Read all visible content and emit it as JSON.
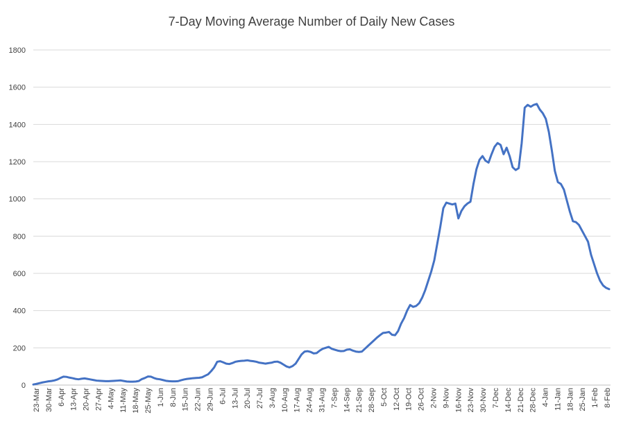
{
  "chart_data": {
    "type": "line",
    "title": "7-Day Moving Average Number of Daily New Cases",
    "xlabel": "",
    "ylabel": "",
    "ylim": [
      0,
      1800
    ],
    "yticks": [
      0,
      200,
      400,
      600,
      800,
      1000,
      1200,
      1400,
      1600,
      1800
    ],
    "grid": true,
    "legend": "none",
    "line_color": "#4472C4",
    "x_tick_labels": [
      "23-Mar",
      "30-Mar",
      "6-Apr",
      "13-Apr",
      "20-Apr",
      "27-Apr",
      "4-May",
      "11-May",
      "18-May",
      "25-May",
      "1-Jun",
      "8-Jun",
      "15-Jun",
      "22-Jun",
      "29-Jun",
      "6-Jul",
      "13-Jul",
      "20-Jul",
      "27-Jul",
      "3-Aug",
      "10-Aug",
      "17-Aug",
      "24-Aug",
      "31-Aug",
      "7-Sep",
      "14-Sep",
      "21-Sep",
      "28-Sep",
      "5-Oct",
      "12-Oct",
      "19-Oct",
      "26-Oct",
      "2-Nov",
      "9-Nov",
      "16-Nov",
      "23-Nov",
      "30-Nov",
      "7-Dec",
      "14-Dec",
      "21-Dec",
      "28-Dec",
      "4-Jan",
      "11-Jan",
      "18-Jan",
      "25-Jan",
      "1-Feb",
      "8-Feb"
    ],
    "series": [
      {
        "values": [
          3,
          6,
          10,
          14,
          17,
          20,
          22,
          25,
          30,
          38,
          45,
          44,
          40,
          37,
          33,
          31,
          34,
          36,
          33,
          30,
          27,
          24,
          23,
          22,
          21,
          21,
          22,
          23,
          24,
          25,
          22,
          19,
          18,
          18,
          19,
          22,
          32,
          38,
          46,
          45,
          38,
          33,
          31,
          27,
          23,
          21,
          20,
          20,
          21,
          26,
          30,
          33,
          35,
          37,
          38,
          39,
          42,
          50,
          58,
          75,
          95,
          125,
          128,
          122,
          115,
          113,
          118,
          125,
          128,
          130,
          131,
          133,
          130,
          128,
          125,
          120,
          118,
          115,
          118,
          120,
          125,
          126,
          120,
          110,
          100,
          95,
          102,
          115,
          140,
          165,
          180,
          182,
          178,
          170,
          172,
          185,
          195,
          200,
          205,
          195,
          190,
          185,
          182,
          183,
          190,
          192,
          185,
          180,
          178,
          180,
          195,
          210,
          225,
          240,
          255,
          268,
          280,
          282,
          285,
          270,
          268,
          290,
          330,
          360,
          400,
          430,
          420,
          425,
          440,
          470,
          510,
          560,
          610,
          670,
          760,
          850,
          950,
          980,
          975,
          970,
          975,
          895,
          935,
          960,
          975,
          985,
          1080,
          1160,
          1210,
          1230,
          1205,
          1195,
          1240,
          1280,
          1300,
          1290,
          1240,
          1275,
          1230,
          1170,
          1155,
          1165,
          1300,
          1490,
          1505,
          1495,
          1505,
          1510,
          1480,
          1460,
          1430,
          1360,
          1260,
          1150,
          1090,
          1080,
          1050,
          990,
          930,
          880,
          875,
          860,
          830,
          800,
          770,
          700,
          650,
          600,
          560,
          535,
          522,
          515
        ]
      }
    ]
  }
}
